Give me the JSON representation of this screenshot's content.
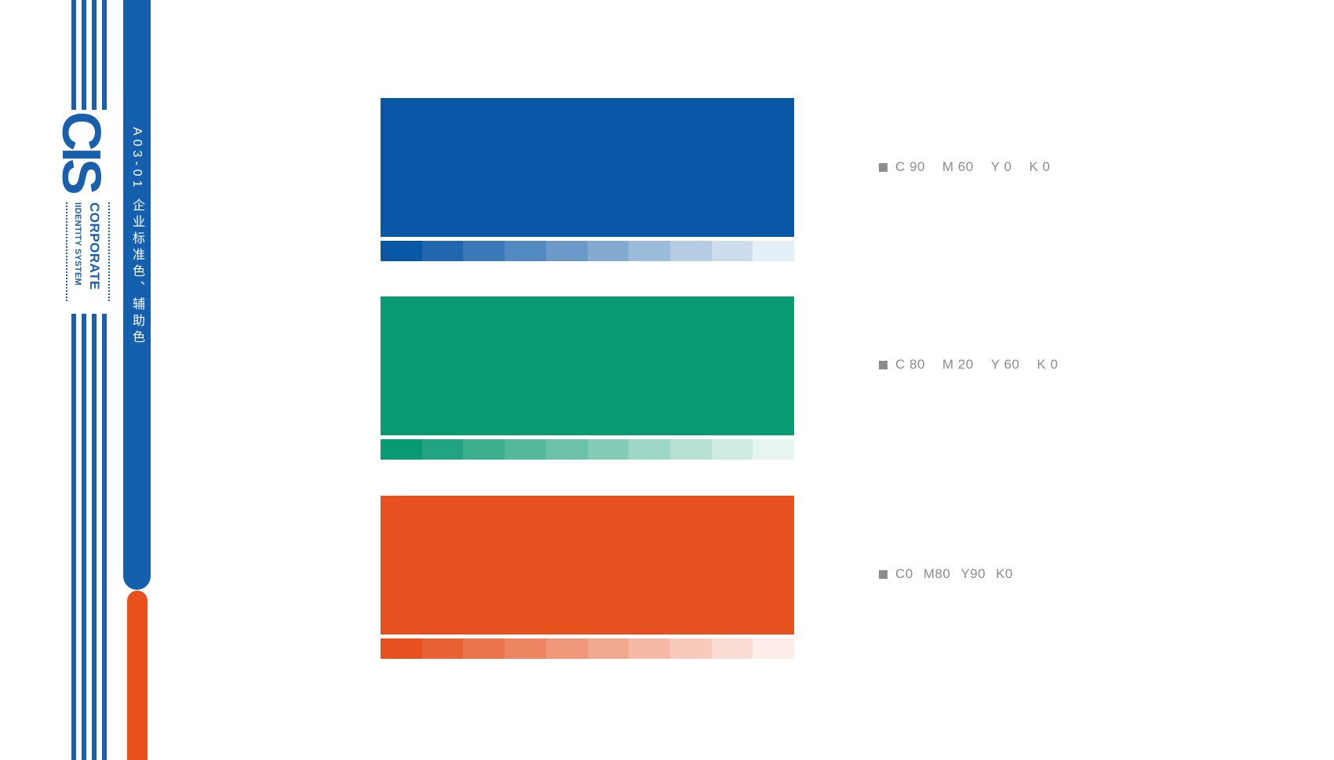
{
  "page": {
    "background": "#ffffff"
  },
  "sidebar": {
    "logo": {
      "text": "CIS",
      "subtitle_line1": "CORPORATE",
      "subtitle_line2": "IIDENTITY SYSTEM",
      "color": "#1a5fac"
    },
    "stripes": {
      "count": 4,
      "color": "#1a5fac"
    },
    "section_bar": {
      "text": "A03-01 企业标准色、辅助色",
      "background": "#1560ae",
      "text_color": "#ffffff"
    },
    "accent_bar": {
      "color": "#e8501c"
    }
  },
  "colors": {
    "label_color": "#8c8c8c",
    "bullet_icon": "square",
    "tint_levels": [
      1,
      0.9,
      0.8,
      0.7,
      0.6,
      0.5,
      0.4,
      0.3,
      0.2,
      0.1
    ],
    "rows": [
      {
        "hex": "#0857a6",
        "cmyk": [
          "C 90",
          "M 60",
          "Y 0",
          "K 0"
        ]
      },
      {
        "hex": "#0a9a72",
        "cmyk": [
          "C 80",
          "M 20",
          "Y 60",
          "K 0"
        ]
      },
      {
        "hex": "#e5511f",
        "cmyk": [
          "C0",
          "M80",
          "Y90",
          "K0"
        ]
      }
    ]
  }
}
